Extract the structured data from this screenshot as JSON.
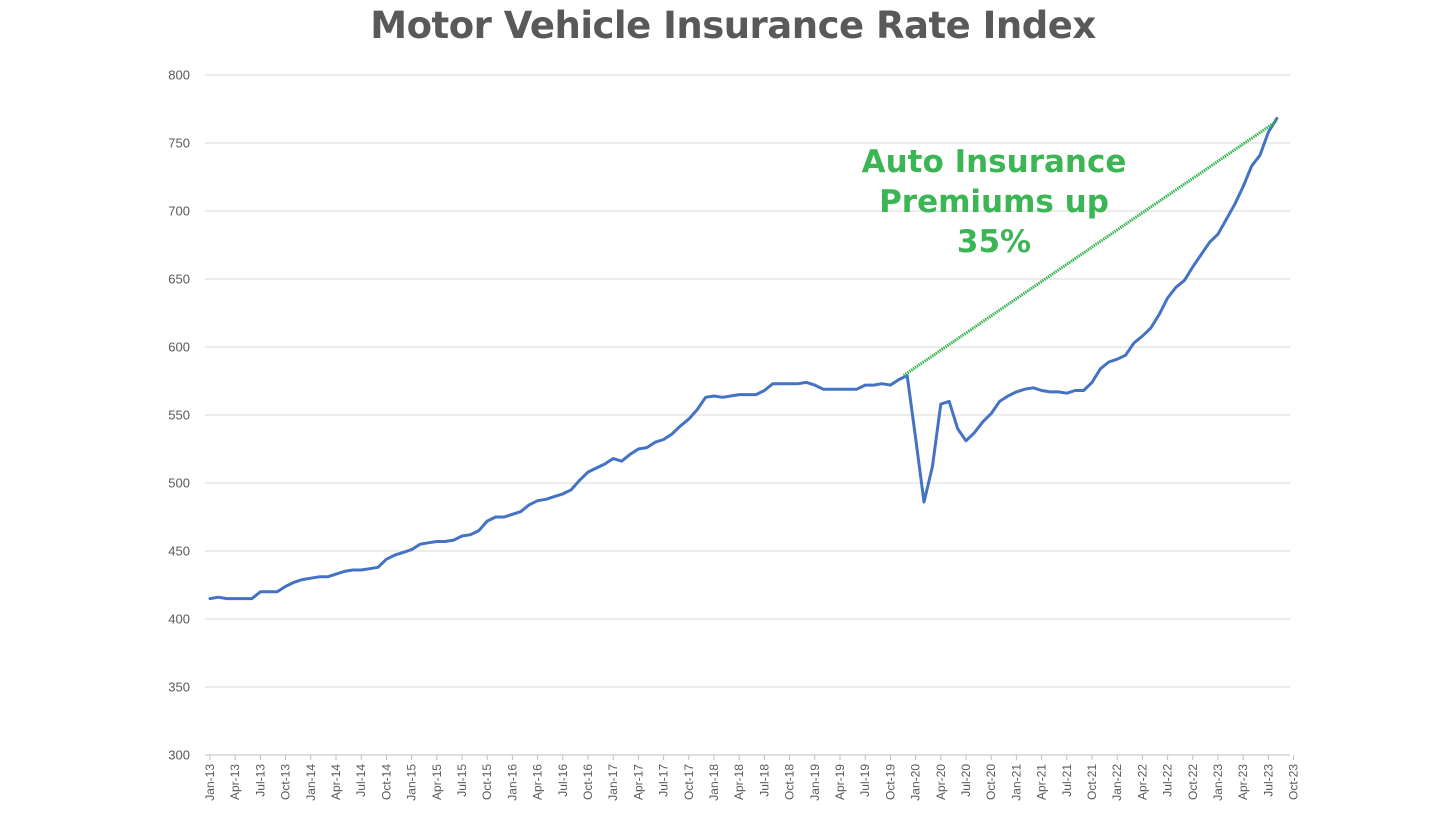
{
  "chart_data": {
    "type": "line",
    "title": "Motor Vehicle Insurance Rate Index",
    "xlabel": "",
    "ylabel": "",
    "ylim": [
      300,
      800
    ],
    "yticks": [
      300,
      350,
      400,
      450,
      500,
      550,
      600,
      650,
      700,
      750,
      800
    ],
    "grid": "horizontal",
    "legend": "none",
    "start_month": "Jan-13",
    "xtick_labels": [
      "Jan-13",
      "Apr-13",
      "Jul-13",
      "Oct-13",
      "Jan-14",
      "Apr-14",
      "Jul-14",
      "Oct-14",
      "Jan-15",
      "Apr-15",
      "Jul-15",
      "Oct-15",
      "Jan-16",
      "Apr-16",
      "Jul-16",
      "Oct-16",
      "Jan-17",
      "Apr-17",
      "Jul-17",
      "Oct-17",
      "Jan-18",
      "Apr-18",
      "Jul-18",
      "Oct-18",
      "Jan-19",
      "Apr-19",
      "Jul-19",
      "Oct-19",
      "Jan-20",
      "Apr-20",
      "Jul-20",
      "Oct-20",
      "Jan-21",
      "Apr-21",
      "Jul-21",
      "Oct-21",
      "Jan-22",
      "Apr-22",
      "Jul-22",
      "Oct-22",
      "Jan-23",
      "Apr-23",
      "Jul-23",
      "Oct-23"
    ],
    "series": [
      {
        "color": "#4472c4",
        "values": [
          415,
          416,
          415,
          415,
          415,
          415,
          420,
          420,
          420,
          424,
          427,
          429,
          430,
          431,
          431,
          433,
          435,
          436,
          436,
          437,
          438,
          444,
          447,
          449,
          451,
          455,
          456,
          457,
          457,
          458,
          461,
          462,
          465,
          472,
          475,
          475,
          477,
          479,
          484,
          487,
          488,
          490,
          492,
          495,
          502,
          508,
          511,
          514,
          518,
          516,
          521,
          525,
          526,
          530,
          532,
          536,
          542,
          547,
          554,
          563,
          564,
          563,
          564,
          565,
          565,
          565,
          568,
          573,
          573,
          573,
          573,
          574,
          572,
          569,
          569,
          569,
          569,
          569,
          572,
          572,
          573,
          572,
          576,
          579,
          533,
          486,
          512,
          558,
          560,
          540,
          531,
          537,
          545,
          551,
          560,
          564,
          567,
          569,
          570,
          568,
          567,
          567,
          566,
          568,
          568,
          574,
          584,
          589,
          591,
          594,
          603,
          608,
          614,
          624,
          636,
          644,
          649,
          659,
          668,
          677,
          683,
          694,
          705,
          718,
          733,
          741,
          758,
          768
        ]
      }
    ],
    "annotation": {
      "text": "Auto Insurance\nPremiums up\n35%",
      "color": "#3cb554",
      "trend_line": {
        "from": {
          "x": "Jan-20",
          "y": 579
        },
        "to": {
          "x": "Oct-23",
          "y": 766
        }
      }
    }
  }
}
